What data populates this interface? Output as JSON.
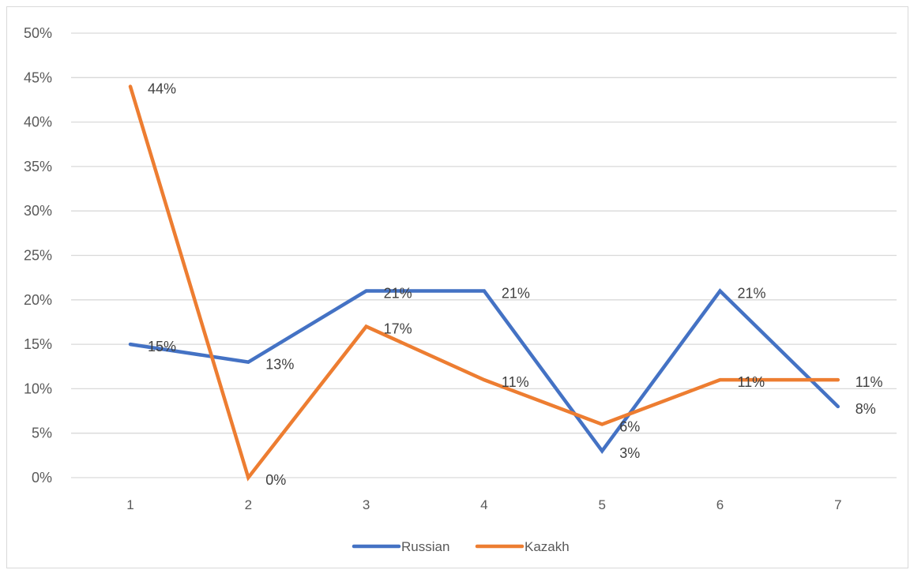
{
  "chart_data": {
    "type": "line",
    "categories": [
      "1",
      "2",
      "3",
      "4",
      "5",
      "6",
      "7"
    ],
    "series": [
      {
        "name": "Russian",
        "color": "#4472C4",
        "values": [
          15,
          13,
          21,
          21,
          3,
          21,
          8
        ],
        "labels": [
          "15%",
          "13%",
          "21%",
          "21%",
          "3%",
          "21%",
          "8%"
        ]
      },
      {
        "name": "Kazakh",
        "color": "#ED7D31",
        "values": [
          44,
          0,
          17,
          11,
          6,
          11,
          11
        ],
        "labels": [
          "44%",
          "0%",
          "17%",
          "11%",
          "6%",
          "11%",
          "11%"
        ]
      }
    ],
    "y_ticks": [
      "0%",
      "5%",
      "10%",
      "15%",
      "20%",
      "25%",
      "30%",
      "35%",
      "40%",
      "45%",
      "50%"
    ],
    "ylim": [
      0,
      50
    ],
    "grid": true,
    "legend_position": "bottom",
    "gridline_color": "#d9d9d9"
  }
}
